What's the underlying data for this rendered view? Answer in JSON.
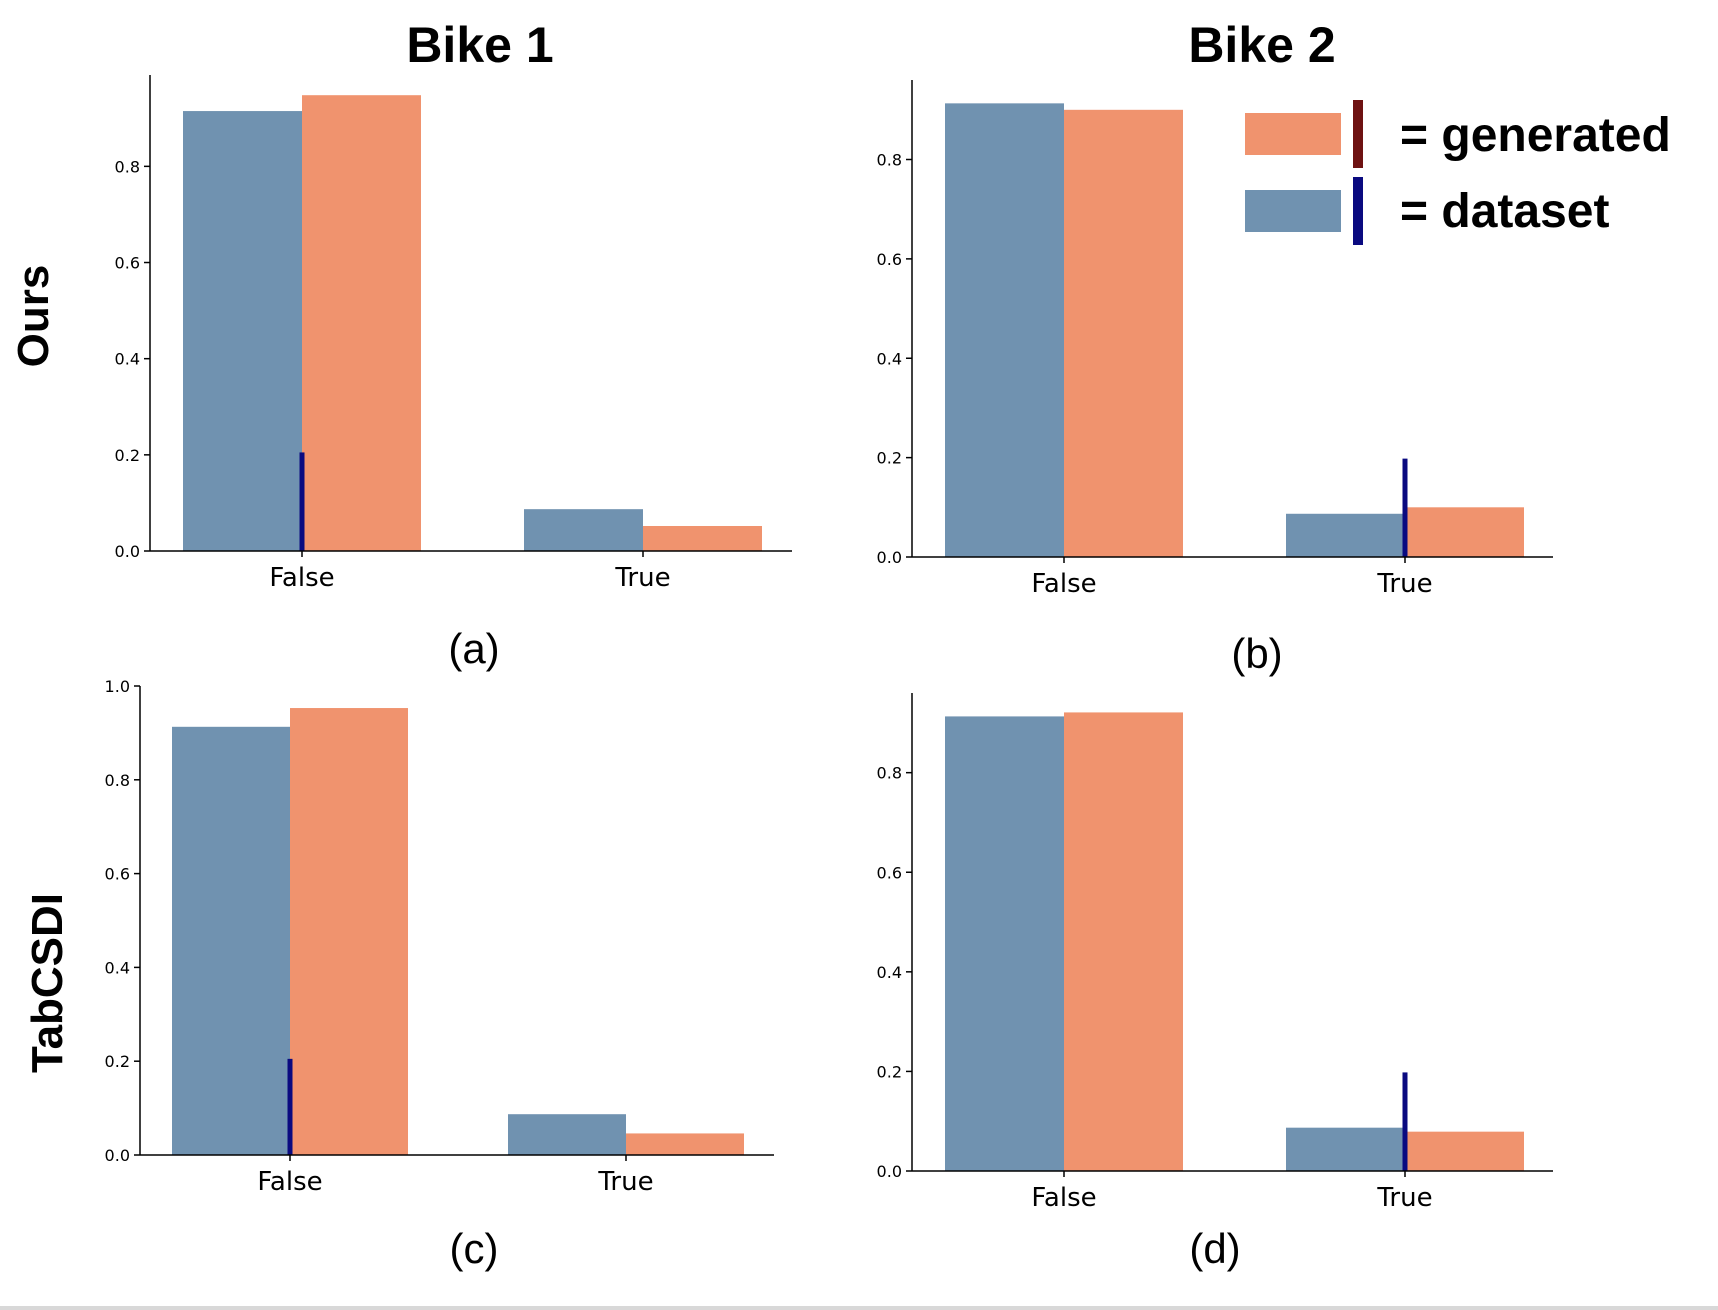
{
  "figure": {
    "column_titles": [
      "Bike 1",
      "Bike 2"
    ],
    "row_titles": [
      "Ours",
      "TabCSDI"
    ],
    "legend": {
      "generated_label": "= generated",
      "dataset_label": "= dataset",
      "generated_color": "#f0936e",
      "dataset_color": "#7092b0",
      "generated_line_color": "#6e1212",
      "dataset_line_color": "#0a0a80"
    }
  },
  "chart_data": [
    {
      "type": "bar",
      "subplot_label": "(a)",
      "categories": [
        "False",
        "True"
      ],
      "series": [
        {
          "name": "dataset",
          "values": [
            0.915,
            0.087
          ]
        },
        {
          "name": "generated",
          "values": [
            0.948,
            0.052
          ]
        }
      ],
      "yticks": [
        "0.0",
        "0.2",
        "0.4",
        "0.6",
        "0.8"
      ],
      "ylim": [
        0,
        0.99
      ],
      "marker": {
        "category_index": 0,
        "value": 0.205,
        "color": "#0a0a80"
      }
    },
    {
      "type": "bar",
      "subplot_label": "(b)",
      "categories": [
        "False",
        "True"
      ],
      "series": [
        {
          "name": "dataset",
          "values": [
            0.913,
            0.087
          ]
        },
        {
          "name": "generated",
          "values": [
            0.9,
            0.1
          ]
        }
      ],
      "yticks": [
        "0.0",
        "0.2",
        "0.4",
        "0.6",
        "0.8"
      ],
      "ylim": [
        0,
        0.96
      ],
      "marker": {
        "category_index": 1,
        "value": 0.198,
        "color": "#0a0a80"
      }
    },
    {
      "type": "bar",
      "subplot_label": "(c)",
      "categories": [
        "False",
        "True"
      ],
      "series": [
        {
          "name": "dataset",
          "values": [
            0.913,
            0.087
          ]
        },
        {
          "name": "generated",
          "values": [
            0.953,
            0.046
          ]
        }
      ],
      "yticks": [
        "0.0",
        "0.2",
        "0.4",
        "0.6",
        "0.8",
        "1.0"
      ],
      "ylim": [
        0,
        1.0
      ],
      "marker": {
        "category_index": 0,
        "value": 0.205,
        "color": "#0a0a80"
      }
    },
    {
      "type": "bar",
      "subplot_label": "(d)",
      "categories": [
        "False",
        "True"
      ],
      "series": [
        {
          "name": "dataset",
          "values": [
            0.913,
            0.087
          ]
        },
        {
          "name": "generated",
          "values": [
            0.921,
            0.079
          ]
        }
      ],
      "yticks": [
        "0.0",
        "0.2",
        "0.4",
        "0.6",
        "0.8"
      ],
      "ylim": [
        0,
        0.96
      ],
      "marker": {
        "category_index": 1,
        "value": 0.198,
        "color": "#0a0a80"
      }
    }
  ]
}
